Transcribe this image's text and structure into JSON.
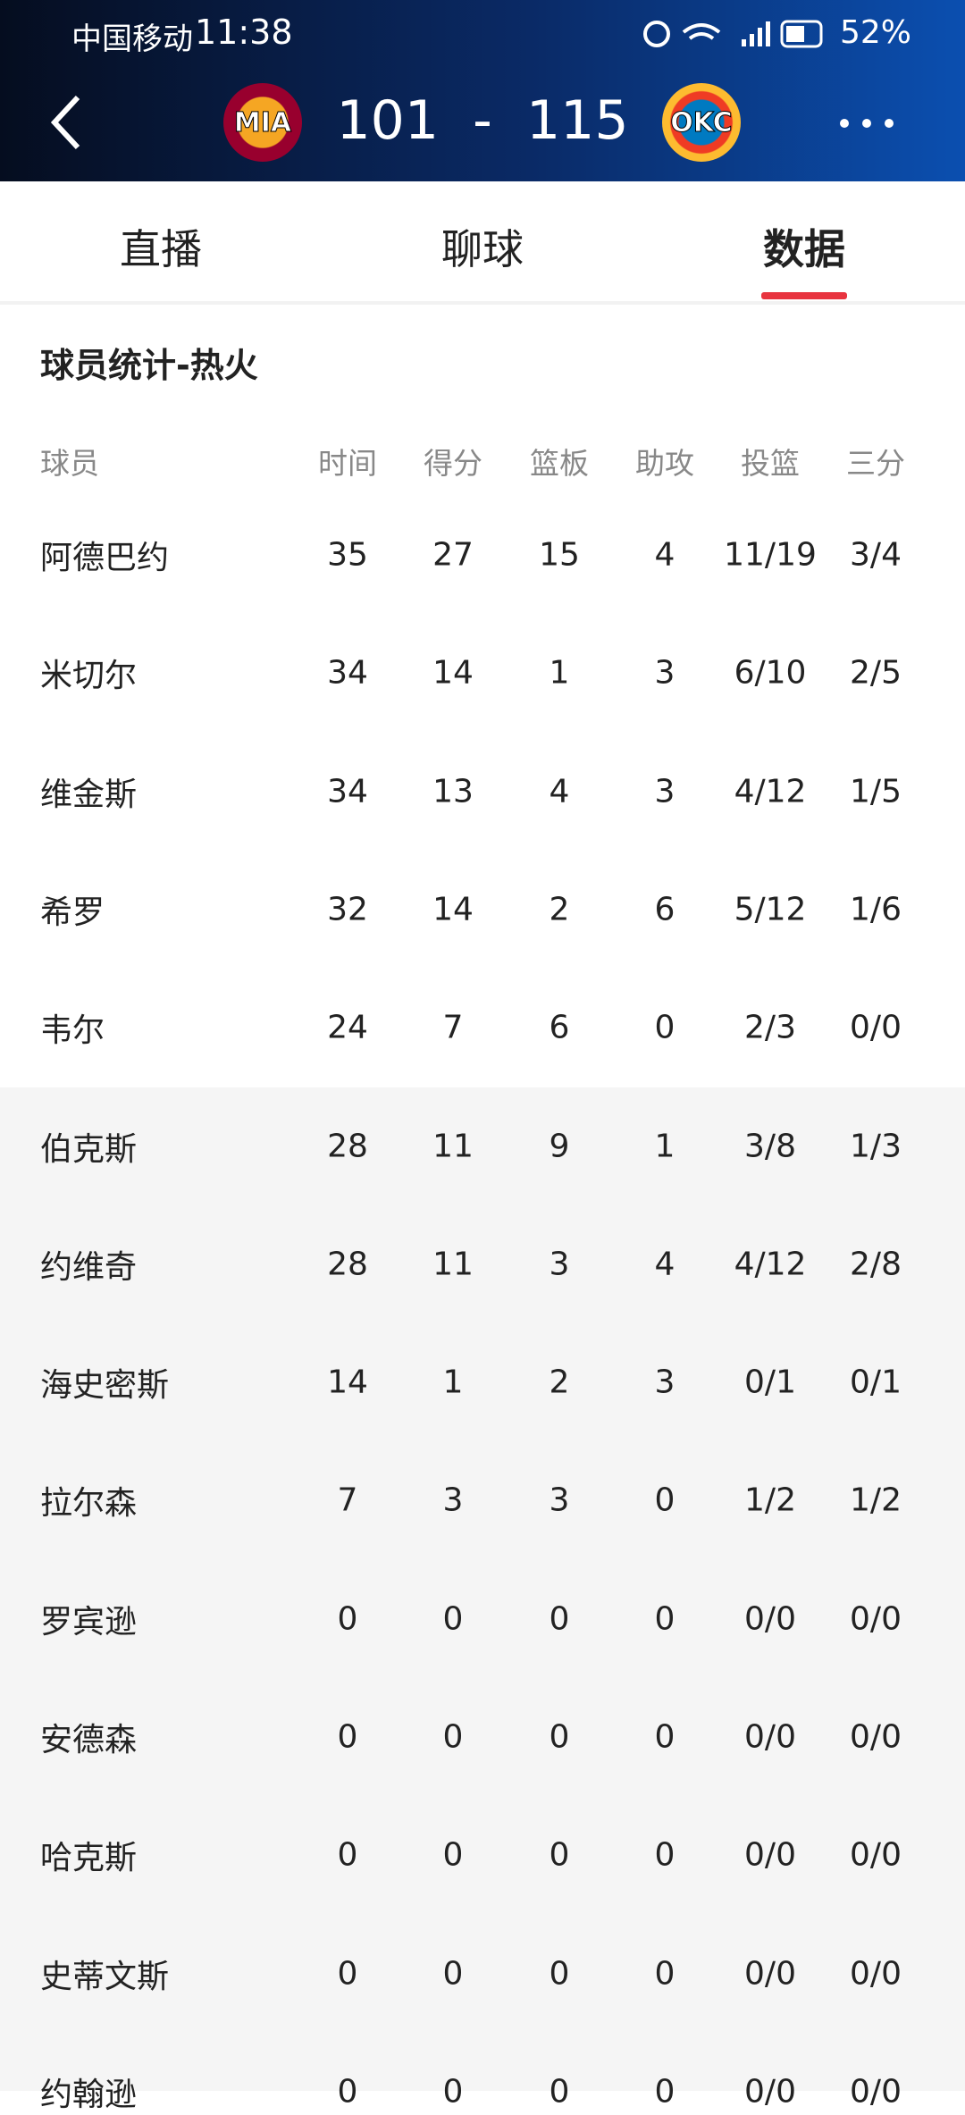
{
  "status_bar": {
    "carrier": "中国移动",
    "time": "11:38",
    "battery": "52%"
  },
  "header": {
    "home_team": "MIA",
    "home_score": "101",
    "separator": "-",
    "away_score": "115",
    "away_team": "OKC"
  },
  "tabs": [
    "直播",
    "聊球",
    "数据"
  ],
  "section_title": "球员统计-热火",
  "table": {
    "columns": [
      "球员",
      "时间",
      "得分",
      "篮板",
      "助攻",
      "投篮",
      "三分"
    ],
    "rows": [
      [
        "阿德巴约",
        "35",
        "27",
        "15",
        "4",
        "11/19",
        "3/4"
      ],
      [
        "米切尔",
        "34",
        "14",
        "1",
        "3",
        "6/10",
        "2/5"
      ],
      [
        "维金斯",
        "34",
        "13",
        "4",
        "3",
        "4/12",
        "1/5"
      ],
      [
        "希罗",
        "32",
        "14",
        "2",
        "6",
        "5/12",
        "1/6"
      ],
      [
        "韦尔",
        "24",
        "7",
        "6",
        "0",
        "2/3",
        "0/0"
      ],
      [
        "伯克斯",
        "28",
        "11",
        "9",
        "1",
        "3/8",
        "1/3"
      ],
      [
        "约维奇",
        "28",
        "11",
        "3",
        "4",
        "4/12",
        "2/8"
      ],
      [
        "海史密斯",
        "14",
        "1",
        "2",
        "3",
        "0/1",
        "0/1"
      ],
      [
        "拉尔森",
        "7",
        "3",
        "3",
        "0",
        "1/2",
        "1/2"
      ],
      [
        "罗宾逊",
        "0",
        "0",
        "0",
        "0",
        "0/0",
        "0/0"
      ],
      [
        "安德森",
        "0",
        "0",
        "0",
        "0",
        "0/0",
        "0/0"
      ],
      [
        "哈克斯",
        "0",
        "0",
        "0",
        "0",
        "0/0",
        "0/0"
      ],
      [
        "史蒂文斯",
        "0",
        "0",
        "0",
        "0",
        "0/0",
        "0/0"
      ],
      [
        "约翰逊",
        "0",
        "0",
        "0",
        "0",
        "0/0",
        "0/0"
      ]
    ]
  }
}
